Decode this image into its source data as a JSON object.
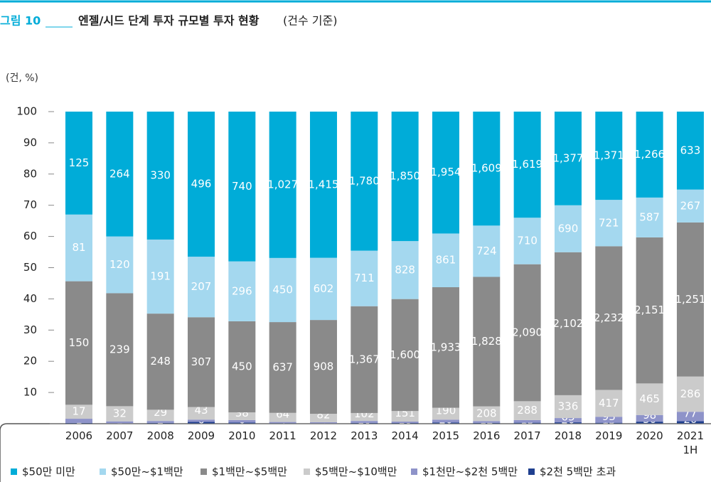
{
  "chart_data": {
    "type": "stacked_bar_100",
    "figure_label": "그림 10",
    "title": "엔젤/시드 단계 투자 규모별 투자 현황",
    "subtitle": "(건수 기준)",
    "y_label": "(건, %)",
    "categories": [
      "2006",
      "2007",
      "2008",
      "2009",
      "2010",
      "2011",
      "2012",
      "2013",
      "2014",
      "2015",
      "2016",
      "2017",
      "2018",
      "2019",
      "2020",
      "2021\n1H"
    ],
    "ylim": [
      0,
      100
    ],
    "yticks": [
      10,
      20,
      30,
      40,
      50,
      60,
      70,
      80,
      90,
      100
    ],
    "series": [
      {
        "name": "$2천 5백만 초과",
        "color": "#1f3f8f",
        "values": [
          1,
          1,
          2,
          6,
          6,
          4,
          4,
          10,
          10,
          20,
          12,
          15,
          20,
          15,
          30,
          20
        ]
      },
      {
        "name": "$1천만~$2천 5백만",
        "color": "#8e93c9",
        "values": [
          5,
          4,
          5,
          8,
          12,
          8,
          10,
          25,
          20,
          45,
          25,
          40,
          63,
          93,
          98,
          77
        ],
        "value_labels": [
          null,
          null,
          null,
          null,
          null,
          null,
          null,
          null,
          null,
          null,
          null,
          null,
          "63",
          "93",
          "98",
          "77"
        ]
      },
      {
        "name": "$5백만~$10백만",
        "color": "#cbcbcb",
        "values": [
          17,
          32,
          29,
          43,
          38,
          64,
          82,
          102,
          151,
          190,
          208,
          288,
          336,
          417,
          465,
          286
        ]
      },
      {
        "name": "$1백만~$5백만",
        "color": "#8a8a8a",
        "values": [
          150,
          239,
          248,
          307,
          450,
          637,
          908,
          1367,
          1600,
          1933,
          1828,
          2090,
          2102,
          2232,
          2151,
          1251
        ],
        "value_labels": [
          "150",
          "239",
          "248",
          "307",
          "450",
          "637",
          "908",
          "1,367",
          "1,600",
          "1,933",
          "1,828",
          "2,090",
          "2,102",
          "2,232",
          "2,151",
          "1,251"
        ]
      },
      {
        "name": "$50만~$1백만",
        "color": "#a4d8ef",
        "values": [
          81,
          120,
          191,
          207,
          296,
          450,
          602,
          711,
          828,
          861,
          724,
          710,
          690,
          721,
          587,
          267
        ]
      },
      {
        "name": "$50만 미만",
        "color": "#00acd8",
        "values": [
          125,
          264,
          330,
          496,
          740,
          1027,
          1415,
          1780,
          1850,
          1954,
          1609,
          1619,
          1377,
          1371,
          1266,
          633
        ],
        "value_labels": [
          "125",
          "264",
          "330",
          "496",
          "740",
          "1,027",
          "1,415",
          "1,780",
          "1,850",
          "1,954",
          "1,609",
          "1,619",
          "1,377",
          "1,371",
          "1,266",
          "633"
        ]
      }
    ]
  }
}
